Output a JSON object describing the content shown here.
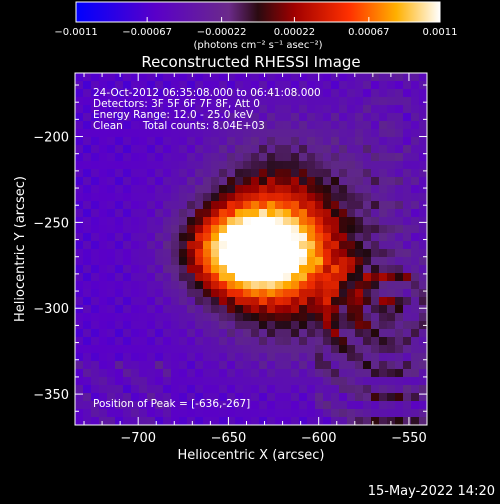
{
  "chart_data": {
    "type": "heatmap",
    "title": "Reconstructed RHESSI Image",
    "xlabel": "Heliocentric X (arcsec)",
    "ylabel": "Heliocentric Y (arcsec)",
    "xlim": [
      -735,
      -540
    ],
    "ylim": [
      -368,
      -163
    ],
    "xticks": [
      -700,
      -650,
      -600,
      -550
    ],
    "xtick_labels": [
      "−700",
      "−650",
      "−600",
      "−550"
    ],
    "yticks": [
      -200,
      -250,
      -300,
      -350
    ],
    "ytick_labels": [
      "−200",
      "−250",
      "−300",
      "−350"
    ],
    "colorbar": {
      "min": -0.0011,
      "max": 0.0011,
      "ticks": [
        -0.0011,
        -0.00067,
        -0.00022,
        0.00022,
        0.00067,
        0.0011
      ],
      "tick_labels": [
        "−0.0011",
        "−0.00067",
        "−0.00022",
        "0.00022",
        "0.00067",
        "0.0011"
      ],
      "units_label": "(photons cm⁻² s⁻¹ asec⁻²)",
      "colormap": "blue-purple-red-yellow-white"
    },
    "annotations": [
      "24-Oct-2012 06:35:08.000 to 06:41:08.000",
      "Detectors: 3F 5F 6F 7F 8F, Att 0",
      "Energy Range: 12.0 - 25.0 keV",
      "Clean      Total counts: 8.04E+03"
    ],
    "peak_label": "Position of Peak = [-636,-267]",
    "peak": [
      -636,
      -267
    ],
    "grid": false
  },
  "footer": {
    "timestamp": "15-May-2022 14:20"
  }
}
